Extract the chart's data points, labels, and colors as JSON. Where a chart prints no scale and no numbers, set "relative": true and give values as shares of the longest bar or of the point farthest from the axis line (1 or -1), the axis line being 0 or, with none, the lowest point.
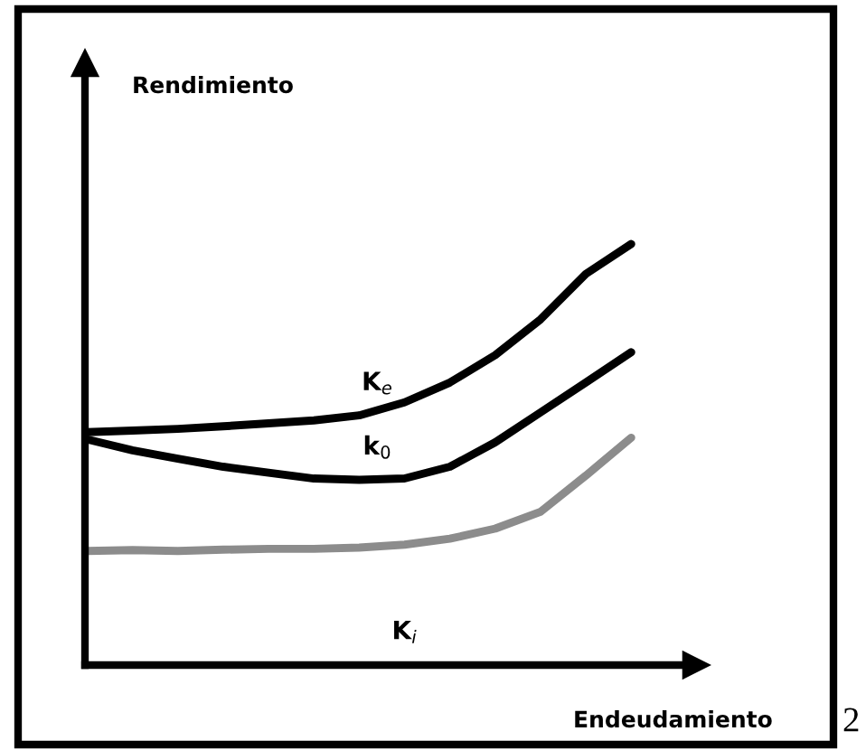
{
  "chart_data": {
    "type": "line",
    "relative": true,
    "xlabel": "Endeudamiento",
    "categories": [
      null,
      null,
      null,
      null,
      null,
      null,
      null,
      null,
      null,
      null,
      null,
      null,
      null
    ],
    "series": [
      {
        "name": "K$_{e}$",
        "color": "#000000",
        "values": [
          0.553,
          0.557,
          0.561,
          0.567,
          0.574,
          0.581,
          0.593,
          0.624,
          0.671,
          0.736,
          0.821,
          0.929,
          1.0
        ]
      },
      {
        "name": "k$_{0}$",
        "color": "#000000",
        "values": [
          0.536,
          0.51,
          0.49,
          0.471,
          0.457,
          0.443,
          0.44,
          0.443,
          0.471,
          0.529,
          0.6,
          0.671,
          0.743
        ]
      },
      {
        "name": "K$_{i}$",
        "color": "#8c8c8c",
        "values": [
          0.271,
          0.273,
          0.271,
          0.274,
          0.276,
          0.276,
          0.279,
          0.286,
          0.3,
          0.324,
          0.364,
          0.45,
          0.54
        ]
      }
    ],
    "annotations": [
      "Rendimiento",
      "2"
    ],
    "marker": "none",
    "line_style": "solid"
  }
}
